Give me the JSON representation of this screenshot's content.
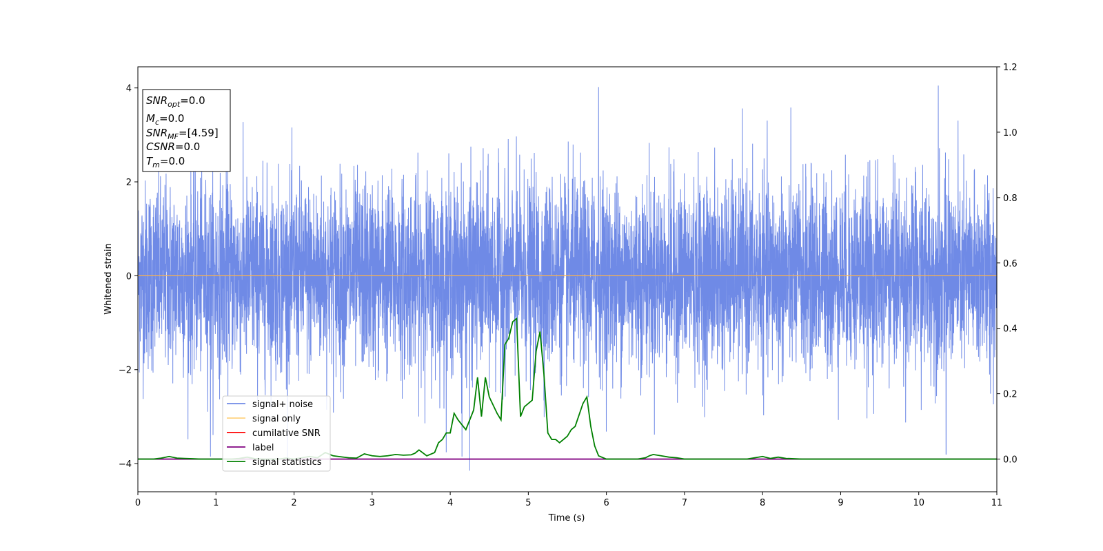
{
  "chart_data": {
    "type": "line",
    "xlabel": "Time (s)",
    "ylabel": "Whitened strain",
    "xlim": [
      0,
      11
    ],
    "ylim_left": [
      -4.6,
      4.45
    ],
    "ylim_right": [
      -0.1,
      1.2
    ],
    "x_ticks": [
      0,
      1,
      2,
      3,
      4,
      5,
      6,
      7,
      8,
      9,
      10,
      11
    ],
    "y_ticks_left": [
      -4,
      -2,
      0,
      2,
      4
    ],
    "y_ticks_right": [
      0.0,
      0.2,
      0.4,
      0.6,
      0.8,
      1.0,
      1.2
    ],
    "x_tick_labels": [
      "0",
      "1",
      "2",
      "3",
      "4",
      "5",
      "6",
      "7",
      "8",
      "9",
      "10",
      "11"
    ],
    "y_tick_labels_left": [
      "−4",
      "−2",
      "0",
      "2",
      "4"
    ],
    "y_tick_labels_right": [
      "0.0",
      "0.2",
      "0.4",
      "0.6",
      "0.8",
      "1.0",
      "1.2"
    ],
    "grid": false,
    "legend_position": "lower-left",
    "legend": [
      {
        "label": "signal+ noise",
        "color": "#6f8ae6"
      },
      {
        "label": "signal only",
        "color": "#ffd27f"
      },
      {
        "label": "cumilative SNR",
        "color": "#ff0000"
      },
      {
        "label": "label",
        "color": "#800080"
      },
      {
        "label": "signal statistics",
        "color": "#008000"
      }
    ],
    "series": [
      {
        "name": "signal+ noise",
        "axis": "left",
        "color": "#6f8ae6",
        "description_values": {
          "approx_range": [
            -4.15,
            4.05
          ],
          "std": 1.0,
          "mean": 0.0
        },
        "notable_peaks": [
          [
            5.9,
            4.02
          ],
          [
            10.25,
            4.05
          ],
          [
            0.93,
            -3.85
          ],
          [
            4.25,
            -4.15
          ],
          [
            10.35,
            -3.8
          ],
          [
            4.15,
            -3.85
          ]
        ]
      },
      {
        "name": "signal only",
        "axis": "left",
        "color": "#ffb347",
        "x": [
          0,
          11
        ],
        "y": [
          0,
          0
        ]
      },
      {
        "name": "label",
        "axis": "right",
        "color": "#800080",
        "x": [
          0,
          11
        ],
        "y": [
          0,
          0
        ]
      },
      {
        "name": "signal statistics",
        "axis": "right",
        "color": "#008000",
        "x": [
          0,
          0.1,
          0.2,
          0.3,
          0.4,
          0.5,
          0.6,
          0.7,
          0.8,
          0.9,
          1.0,
          1.1,
          1.2,
          1.3,
          1.4,
          1.5,
          1.6,
          1.7,
          1.8,
          1.9,
          2.0,
          2.1,
          2.2,
          2.3,
          2.4,
          2.5,
          2.6,
          2.7,
          2.8,
          2.9,
          3.0,
          3.1,
          3.2,
          3.3,
          3.4,
          3.5,
          3.55,
          3.6,
          3.7,
          3.8,
          3.85,
          3.9,
          3.95,
          4.0,
          4.05,
          4.1,
          4.2,
          4.3,
          4.35,
          4.4,
          4.45,
          4.5,
          4.6,
          4.65,
          4.7,
          4.75,
          4.8,
          4.85,
          4.9,
          4.95,
          5.0,
          5.05,
          5.1,
          5.15,
          5.2,
          5.25,
          5.3,
          5.35,
          5.4,
          5.45,
          5.5,
          5.55,
          5.6,
          5.7,
          5.75,
          5.8,
          5.85,
          5.9,
          6.0,
          6.1,
          6.2,
          6.3,
          6.4,
          6.5,
          6.55,
          6.6,
          6.7,
          6.8,
          6.9,
          7.0,
          7.1,
          7.2,
          7.3,
          7.4,
          7.5,
          7.6,
          7.7,
          7.8,
          7.9,
          8.0,
          8.1,
          8.2,
          8.3,
          8.4,
          8.5,
          8.6,
          8.8,
          9.0,
          9.2,
          9.5,
          10.0,
          10.5,
          11.0
        ],
        "y": [
          0.0,
          0.0,
          0.0,
          0.003,
          0.008,
          0.003,
          0.002,
          0.001,
          0.0,
          0.0,
          0.0,
          0.0,
          0.0,
          0.002,
          0.006,
          0.001,
          0.0,
          0.0,
          0.0,
          0.003,
          0.0,
          0.004,
          0.008,
          0.004,
          0.02,
          0.01,
          0.007,
          0.004,
          0.003,
          0.016,
          0.01,
          0.008,
          0.01,
          0.014,
          0.012,
          0.013,
          0.018,
          0.028,
          0.01,
          0.02,
          0.05,
          0.06,
          0.08,
          0.08,
          0.14,
          0.12,
          0.09,
          0.15,
          0.25,
          0.13,
          0.25,
          0.19,
          0.14,
          0.12,
          0.35,
          0.37,
          0.42,
          0.43,
          0.13,
          0.16,
          0.17,
          0.18,
          0.33,
          0.39,
          0.26,
          0.08,
          0.06,
          0.06,
          0.05,
          0.06,
          0.07,
          0.09,
          0.1,
          0.17,
          0.19,
          0.1,
          0.04,
          0.01,
          0.0,
          0.0,
          0.0,
          0.0,
          0.0,
          0.004,
          0.01,
          0.014,
          0.01,
          0.006,
          0.004,
          0.0,
          0.0,
          0.0,
          0.0,
          0.0,
          0.0,
          0.0,
          0.0,
          0.0,
          0.004,
          0.008,
          0.002,
          0.006,
          0.002,
          0.001,
          0.0,
          0.0,
          0.0,
          0.0,
          0.0,
          0.0,
          0.0,
          0.0,
          0.0
        ]
      }
    ]
  },
  "stats_box": {
    "line1_sym": "SNR",
    "line1_sub": "opt",
    "line1_val": "=0.0",
    "line2_sym": "M",
    "line2_sub": "c",
    "line2_val": "=0.0",
    "line3_sym": "SNR",
    "line3_sub": "MF",
    "line3_val": "=[4.59]",
    "line4_sym": "CSNR",
    "line4_val": "=0.0",
    "line5_sym": "T",
    "line5_sub": "m",
    "line5_val": "=0.0"
  }
}
